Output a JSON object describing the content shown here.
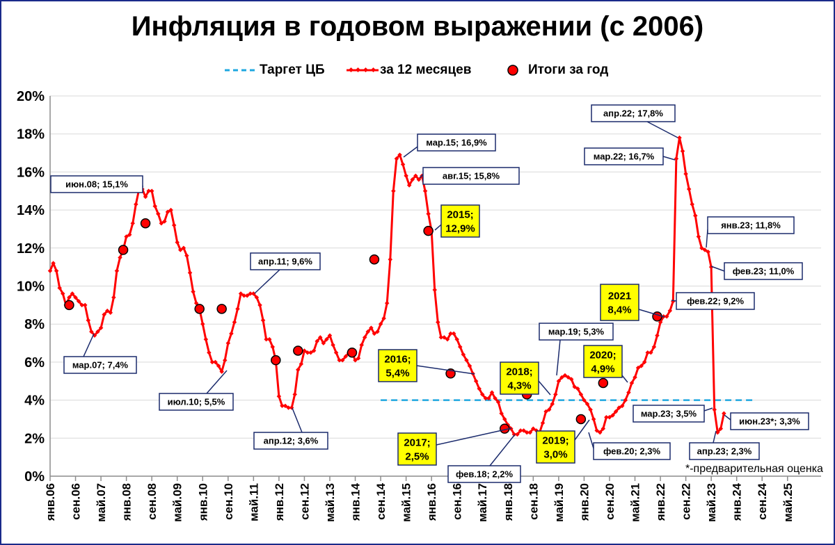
{
  "chart_data": {
    "type": "line",
    "title": "Инфляция в годовом выражении (с 2006)",
    "legend": {
      "placement": "top",
      "items": [
        "Таргет ЦБ",
        "за 12 месяцев",
        "Итоги за год"
      ]
    },
    "colors": {
      "line": "#ff0000",
      "marker": "#ff0000",
      "target": "#1fa8e0",
      "callout_yellow": "#ffff00",
      "callout_border": "#1a2a6c"
    },
    "ylim": [
      0,
      20
    ],
    "yticks": [
      "0%",
      "2%",
      "4%",
      "6%",
      "8%",
      "10%",
      "12%",
      "14%",
      "16%",
      "18%",
      "20%"
    ],
    "xticks": [
      "янв.06",
      "сен.06",
      "май.07",
      "янв.08",
      "сен.08",
      "май.09",
      "янв.10",
      "сен.10",
      "май.11",
      "янв.12",
      "сен.12",
      "май.13",
      "янв.14",
      "сен.14",
      "май.15",
      "янв.16",
      "сен.16",
      "май.17",
      "янв.18",
      "сен.18",
      "май.19",
      "янв.20",
      "сен.20",
      "май.21",
      "янв.22",
      "сен.22",
      "май.23",
      "янв.24",
      "сен.24",
      "май.25"
    ],
    "grid": true,
    "target": {
      "value": 4.0,
      "from": "сен.14",
      "to": "июл.24"
    },
    "series": [
      {
        "name": "за 12 месяцев",
        "start": "янв.06",
        "values": [
          10.8,
          11.2,
          10.8,
          9.9,
          9.6,
          9.0,
          9.4,
          9.6,
          9.4,
          9.2,
          9.0,
          9.0,
          8.2,
          7.6,
          7.4,
          7.6,
          7.8,
          8.5,
          8.7,
          8.6,
          9.4,
          10.8,
          11.5,
          11.9,
          12.6,
          12.7,
          13.3,
          14.3,
          15.1,
          15.1,
          14.7,
          15.0,
          15.0,
          14.2,
          13.8,
          13.3,
          13.4,
          13.9,
          14.0,
          13.2,
          12.3,
          11.9,
          12.0,
          11.6,
          10.7,
          9.7,
          9.1,
          8.8,
          8.0,
          7.2,
          6.5,
          6.0,
          6.0,
          5.8,
          5.5,
          6.1,
          7.0,
          7.5,
          8.1,
          8.8,
          9.6,
          9.5,
          9.5,
          9.6,
          9.6,
          9.4,
          9.0,
          8.2,
          7.2,
          7.2,
          6.8,
          6.1,
          4.2,
          3.7,
          3.7,
          3.6,
          3.6,
          4.3,
          5.6,
          5.9,
          6.6,
          6.5,
          6.5,
          6.6,
          7.1,
          7.3,
          7.0,
          7.2,
          7.4,
          6.9,
          6.5,
          6.1,
          6.1,
          6.3,
          6.5,
          6.5,
          6.1,
          6.2,
          6.9,
          7.3,
          7.6,
          7.8,
          7.5,
          7.6,
          8.0,
          8.3,
          9.1,
          11.4,
          15.0,
          16.7,
          16.9,
          16.4,
          15.8,
          15.3,
          15.6,
          15.8,
          15.6,
          15.8,
          15.0,
          13.8,
          12.9,
          9.8,
          8.1,
          7.3,
          7.3,
          7.2,
          7.5,
          7.5,
          7.2,
          6.8,
          6.4,
          6.1,
          5.8,
          5.4,
          5.0,
          4.6,
          4.3,
          4.1,
          4.1,
          4.4,
          4.1,
          3.9,
          3.3,
          3.0,
          2.7,
          2.5,
          2.2,
          2.2,
          2.4,
          2.4,
          2.3,
          2.3,
          2.5,
          2.4,
          2.3,
          2.8,
          3.4,
          3.5,
          3.8,
          4.3,
          5.0,
          5.2,
          5.3,
          5.2,
          5.1,
          4.7,
          4.6,
          4.3,
          4.0,
          3.8,
          3.5,
          3.0,
          2.4,
          2.3,
          2.5,
          3.1,
          3.1,
          3.2,
          3.4,
          3.6,
          3.7,
          4.0,
          4.4,
          4.9,
          5.2,
          5.7,
          5.8,
          6.0,
          6.5,
          6.5,
          6.8,
          7.4,
          8.1,
          8.4,
          8.4,
          8.7,
          9.2,
          16.7,
          17.8,
          17.1,
          15.9,
          15.1,
          14.3,
          13.7,
          12.6,
          12.0,
          11.9,
          11.8,
          11.0,
          3.5,
          2.3,
          2.5,
          3.3
        ],
        "annotations": [
          {
            "label": "июн.08; 15,1%",
            "style": "white"
          },
          {
            "label": "мар.07; 7,4%",
            "style": "white"
          },
          {
            "label": "июл.10; 5,5%",
            "style": "white"
          },
          {
            "label": "апр.11; 9,6%",
            "style": "white"
          },
          {
            "label": "апр.12; 3,6%",
            "style": "white"
          },
          {
            "label": "мар.15; 16,9%",
            "style": "white"
          },
          {
            "label": "авг.15; 15,8%",
            "style": "white"
          },
          {
            "label": "фев.18; 2,2%",
            "style": "white"
          },
          {
            "label": "мар.19; 5,3%",
            "style": "white"
          },
          {
            "label": "фев.20; 2,3%",
            "style": "white"
          },
          {
            "label": "апр.22; 17,8%",
            "style": "white"
          },
          {
            "label": "мар.22; 16,7%",
            "style": "white"
          },
          {
            "label": "фев.22; 9,2%",
            "style": "white"
          },
          {
            "label": "янв.23; 11,8%",
            "style": "white"
          },
          {
            "label": "фев.23; 11,0%",
            "style": "white"
          },
          {
            "label": "мар.23; 3,5%",
            "style": "white"
          },
          {
            "label": "апр.23; 2,3%",
            "style": "white"
          },
          {
            "label": "июн.23*; 3,3%",
            "style": "white"
          },
          {
            "label": "2015;\n12,9%",
            "style": "yellow"
          },
          {
            "label": "2016;\n5,4%",
            "style": "yellow"
          },
          {
            "label": "2017;\n2,5%",
            "style": "yellow"
          },
          {
            "label": "2018;\n4,3%",
            "style": "yellow"
          },
          {
            "label": "2019;\n3,0%",
            "style": "yellow"
          },
          {
            "label": "2020;\n4,9%",
            "style": "yellow"
          },
          {
            "label": "2021\n8,4%",
            "style": "yellow"
          }
        ]
      },
      {
        "name": "Итоги за год",
        "type": "scatter",
        "points": [
          {
            "x": "июл.06",
            "y": 9.0
          },
          {
            "x": "дек.07",
            "y": 11.9
          },
          {
            "x": "июл.08",
            "y": 13.3
          },
          {
            "x": "дек.09",
            "y": 8.8
          },
          {
            "x": "июл.10",
            "y": 8.8
          },
          {
            "x": "дек.11",
            "y": 6.1
          },
          {
            "x": "июл.12",
            "y": 6.6
          },
          {
            "x": "дек.13",
            "y": 6.5
          },
          {
            "x": "июл.14",
            "y": 11.4
          },
          {
            "x": "дек.15",
            "y": 12.9
          },
          {
            "x": "июл.16",
            "y": 5.4
          },
          {
            "x": "дек.17",
            "y": 2.5
          },
          {
            "x": "июл.18",
            "y": 4.3
          },
          {
            "x": "дек.19",
            "y": 3.0
          },
          {
            "x": "июл.20",
            "y": 4.9
          },
          {
            "x": "дек.21",
            "y": 8.4
          }
        ]
      }
    ],
    "footnote": "*-предварительная оценка"
  }
}
